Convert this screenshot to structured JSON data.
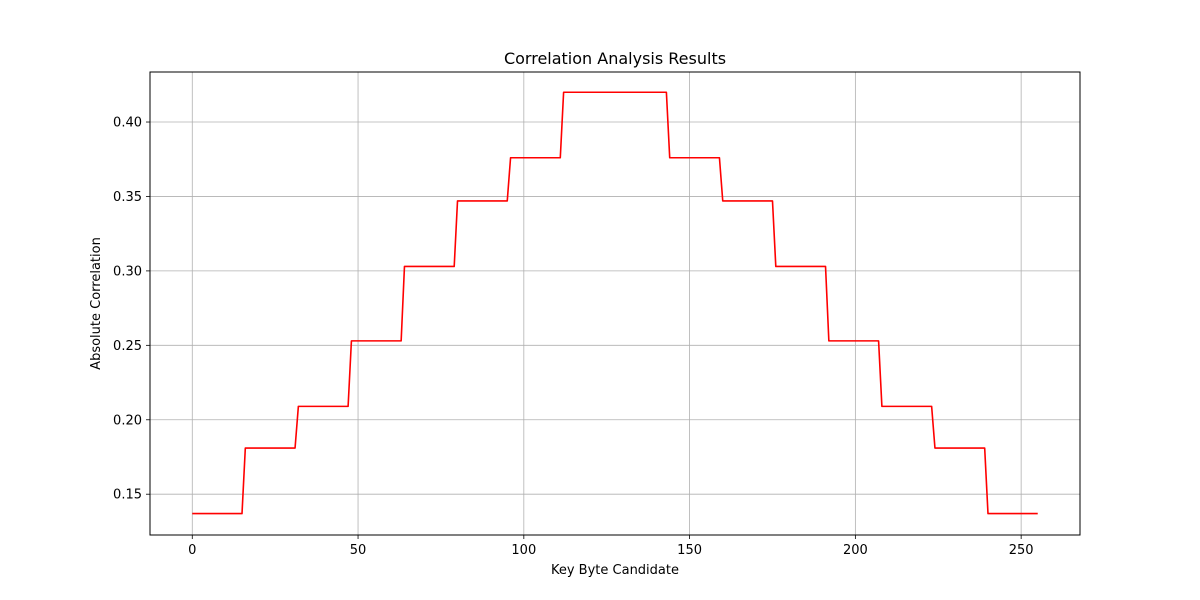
{
  "chart_data": {
    "type": "line",
    "title": "Correlation Analysis Results",
    "xlabel": "Key Byte Candidate",
    "ylabel": "Absolute Correlation",
    "xlim": [
      -12.75,
      267.75
    ],
    "ylim": [
      0.1226,
      0.4336
    ],
    "xticks": [
      0,
      50,
      100,
      150,
      200,
      250
    ],
    "yticks": [
      0.15,
      0.2,
      0.25,
      0.3,
      0.35,
      0.4
    ],
    "ytick_labels": [
      "0.15",
      "0.20",
      "0.25",
      "0.30",
      "0.35",
      "0.40"
    ],
    "grid": true,
    "series": [
      {
        "color": "#ff0000",
        "x": [
          0,
          15,
          16,
          31,
          32,
          47,
          48,
          63,
          64,
          79,
          80,
          95,
          96,
          111,
          112,
          143,
          144,
          159,
          160,
          175,
          176,
          191,
          192,
          207,
          208,
          223,
          224,
          239,
          240,
          255
        ],
        "y": [
          0.137,
          0.137,
          0.181,
          0.181,
          0.209,
          0.209,
          0.253,
          0.253,
          0.303,
          0.303,
          0.347,
          0.347,
          0.376,
          0.376,
          0.42,
          0.42,
          0.376,
          0.376,
          0.347,
          0.347,
          0.303,
          0.303,
          0.253,
          0.253,
          0.209,
          0.209,
          0.181,
          0.181,
          0.137,
          0.137
        ]
      }
    ]
  }
}
